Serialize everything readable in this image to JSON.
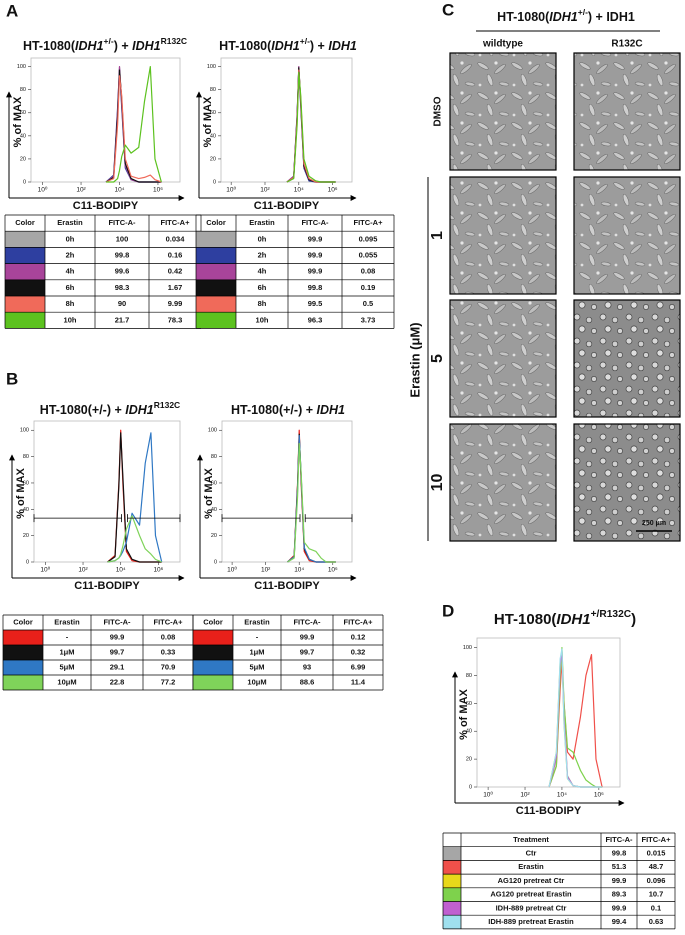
{
  "panel_labels": [
    "A",
    "B",
    "C",
    "D"
  ],
  "chart_data": [
    {
      "type": "line",
      "title_parts": [
        {
          "text": "HT-1080("
        },
        {
          "text": "IDH1",
          "style": "italic"
        },
        {
          "text": "+/-",
          "style": "sup"
        },
        {
          "text": ") + "
        },
        {
          "text": "IDH1",
          "style": "italic"
        },
        {
          "text": "R132C",
          "style": "sup"
        }
      ],
      "xlabel": "C11-BODIPY",
      "ylabel": "% of MAX",
      "log": "x",
      "xlim": [
        0.25,
        14000000
      ],
      "ylim": [
        0,
        104
      ],
      "xticks": [
        {
          "value": 1,
          "label": "10⁰"
        },
        {
          "value": 100,
          "label": "10²"
        },
        {
          "value": 10000,
          "label": "10⁴"
        },
        {
          "value": 1000000,
          "label": "10⁶"
        }
      ],
      "yticks": [
        0,
        20,
        40,
        60,
        80,
        100
      ],
      "x": [
        2000,
        5000,
        8000,
        10000,
        13000,
        20000,
        40000,
        100000,
        200000,
        400000,
        700000,
        1500000
      ],
      "series": [
        {
          "color": "#a6a6a6",
          "values": [
            0,
            5,
            60,
            100,
            70,
            15,
            2,
            0,
            0,
            0,
            0,
            0
          ]
        },
        {
          "color": "#2e3fa0",
          "values": [
            0,
            6,
            65,
            98,
            65,
            12,
            2,
            0,
            0,
            0,
            0,
            0
          ]
        },
        {
          "color": "#a8449a",
          "values": [
            0,
            5,
            62,
            100,
            68,
            14,
            2,
            0,
            0,
            0,
            0,
            0
          ]
        },
        {
          "color": "#111111",
          "values": [
            0,
            4,
            58,
            97,
            72,
            16,
            3,
            0,
            0,
            0,
            0,
            0
          ]
        },
        {
          "color": "#f06a5a",
          "values": [
            0,
            3,
            50,
            92,
            75,
            20,
            5,
            3,
            4,
            6,
            2,
            0
          ]
        },
        {
          "color": "#5cc21f",
          "values": [
            0,
            0,
            3,
            10,
            22,
            32,
            25,
            30,
            70,
            100,
            20,
            0
          ]
        }
      ]
    },
    {
      "type": "line",
      "title_parts": [
        {
          "text": "HT-1080("
        },
        {
          "text": "IDH1",
          "style": "italic"
        },
        {
          "text": "+/-",
          "style": "sup"
        },
        {
          "text": ") + "
        },
        {
          "text": "IDH1",
          "style": "italic"
        }
      ],
      "xlabel": "C11-BODIPY",
      "ylabel": "% of MAX",
      "log": "x",
      "xlim": [
        0.25,
        14000000
      ],
      "ylim": [
        0,
        104
      ],
      "xticks": [
        {
          "value": 1,
          "label": "10⁰"
        },
        {
          "value": 100,
          "label": "10²"
        },
        {
          "value": 10000,
          "label": "10⁴"
        },
        {
          "value": 1000000,
          "label": "10⁶"
        }
      ],
      "yticks": [
        0,
        20,
        40,
        60,
        80,
        100
      ],
      "x": [
        2000,
        5000,
        8000,
        10000,
        13000,
        20000,
        40000,
        100000,
        200000,
        400000,
        700000,
        1500000
      ],
      "series": [
        {
          "color": "#a6a6a6",
          "values": [
            0,
            4,
            55,
            100,
            70,
            14,
            2,
            0,
            0,
            0,
            0,
            0
          ]
        },
        {
          "color": "#2e3fa0",
          "values": [
            0,
            5,
            60,
            98,
            66,
            12,
            1,
            0,
            0,
            0,
            0,
            0
          ]
        },
        {
          "color": "#a8449a",
          "values": [
            0,
            5,
            58,
            100,
            68,
            13,
            2,
            0,
            0,
            0,
            0,
            0
          ]
        },
        {
          "color": "#111111",
          "values": [
            0,
            4,
            57,
            99,
            70,
            14,
            2,
            0,
            0,
            0,
            0,
            0
          ]
        },
        {
          "color": "#f06a5a",
          "values": [
            0,
            4,
            55,
            97,
            72,
            16,
            3,
            0,
            0,
            0,
            0,
            0
          ]
        },
        {
          "color": "#5cc21f",
          "values": [
            0,
            3,
            50,
            95,
            75,
            20,
            5,
            1,
            0,
            0,
            0,
            0
          ]
        }
      ]
    },
    {
      "type": "line",
      "title_parts": [
        {
          "text": "HT-1080(+/-) + "
        },
        {
          "text": "IDH1",
          "style": "italic"
        },
        {
          "text": "R132C",
          "style": "sup"
        }
      ],
      "xlabel": "C11-BODIPY",
      "ylabel": "% of MAX",
      "log": "x",
      "xlim": [
        0.25,
        14000000
      ],
      "ylim": [
        0,
        104
      ],
      "xticks": [
        {
          "value": 1,
          "label": "10⁰"
        },
        {
          "value": 100,
          "label": "10²"
        },
        {
          "value": 10000,
          "label": "10⁴"
        },
        {
          "value": 1000000,
          "label": "10⁶"
        }
      ],
      "yticks": [
        0,
        20,
        40,
        60,
        80,
        100
      ],
      "x": [
        2000,
        5000,
        8000,
        10000,
        13000,
        20000,
        40000,
        100000,
        200000,
        400000,
        700000,
        1500000
      ],
      "series": [
        {
          "color": "#e8201a",
          "values": [
            0,
            5,
            60,
            100,
            60,
            8,
            1,
            0,
            0,
            0,
            0,
            0
          ]
        },
        {
          "color": "#111111",
          "values": [
            0,
            4,
            58,
            98,
            65,
            10,
            2,
            0,
            0,
            0,
            0,
            0
          ]
        },
        {
          "color": "#2f78c4",
          "values": [
            0,
            1,
            3,
            5,
            8,
            15,
            37,
            28,
            75,
            98,
            20,
            0
          ]
        },
        {
          "color": "#7fd35a",
          "values": [
            0,
            1,
            3,
            6,
            12,
            25,
            35,
            20,
            10,
            6,
            2,
            0
          ]
        }
      ]
    },
    {
      "type": "line",
      "title_parts": [
        {
          "text": "HT-1080(+/-) + "
        },
        {
          "text": "IDH1",
          "style": "italic"
        }
      ],
      "xlabel": "C11-BODIPY",
      "ylabel": "% of MAX",
      "log": "x",
      "xlim": [
        0.25,
        14000000
      ],
      "ylim": [
        0,
        104
      ],
      "xticks": [
        {
          "value": 1,
          "label": "10⁰"
        },
        {
          "value": 100,
          "label": "10²"
        },
        {
          "value": 10000,
          "label": "10⁴"
        },
        {
          "value": 1000000,
          "label": "10⁶"
        }
      ],
      "yticks": [
        0,
        20,
        40,
        60,
        80,
        100
      ],
      "x": [
        2000,
        5000,
        8000,
        10000,
        13000,
        20000,
        40000,
        100000,
        200000,
        400000,
        700000,
        1500000
      ],
      "series": [
        {
          "color": "#e8201a",
          "values": [
            0,
            5,
            60,
            100,
            60,
            8,
            1,
            0,
            0,
            0,
            0,
            0
          ]
        },
        {
          "color": "#111111",
          "values": [
            0,
            4,
            58,
            97,
            65,
            10,
            2,
            0,
            0,
            0,
            0,
            0
          ]
        },
        {
          "color": "#2f78c4",
          "values": [
            0,
            4,
            55,
            96,
            66,
            11,
            2,
            0,
            0,
            0,
            0,
            0
          ]
        },
        {
          "color": "#7fd35a",
          "values": [
            0,
            3,
            50,
            90,
            68,
            15,
            10,
            8,
            3,
            0,
            0,
            0
          ]
        }
      ]
    },
    {
      "type": "line",
      "title_parts": [
        {
          "text": "HT-1080("
        },
        {
          "text": "IDH1",
          "style": "italic"
        },
        {
          "text": "+/R132C",
          "style": "sup"
        },
        {
          "text": ")"
        }
      ],
      "xlabel": "C11-BODIPY",
      "ylabel": "% of MAX",
      "log": "x",
      "xlim": [
        0.25,
        14000000
      ],
      "ylim": [
        0,
        104
      ],
      "xticks": [
        {
          "value": 1,
          "label": "10⁰"
        },
        {
          "value": 100,
          "label": "10²"
        },
        {
          "value": 10000,
          "label": "10⁴"
        },
        {
          "value": 1000000,
          "label": "10⁶"
        }
      ],
      "yticks": [
        0,
        20,
        40,
        60,
        80,
        100
      ],
      "x": [
        2000,
        5000,
        8000,
        10000,
        13000,
        20000,
        40000,
        100000,
        200000,
        400000,
        700000,
        1500000
      ],
      "series": [
        {
          "color": "#a6a6a6",
          "values": [
            0,
            20,
            85,
            98,
            50,
            8,
            1,
            0,
            0,
            0,
            0,
            0
          ]
        },
        {
          "color": "#f0504a",
          "values": [
            0,
            15,
            70,
            90,
            60,
            25,
            20,
            50,
            80,
            95,
            20,
            0
          ]
        },
        {
          "color": "#e8d81a",
          "values": [
            0,
            25,
            90,
            95,
            45,
            6,
            1,
            0,
            0,
            0,
            0,
            0
          ]
        },
        {
          "color": "#7ed24c",
          "values": [
            0,
            15,
            80,
            100,
            60,
            28,
            25,
            12,
            5,
            2,
            0,
            0
          ]
        },
        {
          "color": "#c060d0",
          "values": [
            0,
            22,
            88,
            97,
            48,
            7,
            1,
            0,
            0,
            0,
            0,
            0
          ]
        },
        {
          "color": "#9fe0ee",
          "values": [
            0,
            25,
            92,
            99,
            45,
            6,
            1,
            0,
            0,
            0,
            0,
            0
          ]
        }
      ]
    }
  ],
  "tables": [
    {
      "columns": [
        "Color",
        "Erastin",
        "FITC-A-",
        "FITC-A+"
      ],
      "rows": [
        {
          "color": "#a6a6a6",
          "cells": [
            "0h",
            100,
            0.034
          ]
        },
        {
          "color": "#2e3fa0",
          "cells": [
            "2h",
            99.8,
            0.16
          ]
        },
        {
          "color": "#a8449a",
          "cells": [
            "4h",
            99.6,
            0.42
          ]
        },
        {
          "color": "#111111",
          "cells": [
            "6h",
            98.3,
            1.67
          ]
        },
        {
          "color": "#f06a5a",
          "cells": [
            "8h",
            90,
            9.99
          ]
        },
        {
          "color": "#5cc21f",
          "cells": [
            "10h",
            21.7,
            78.3
          ]
        }
      ]
    },
    {
      "columns": [
        "Color",
        "Erastin",
        "FITC-A-",
        "FITC-A+"
      ],
      "rows": [
        {
          "color": "#a6a6a6",
          "cells": [
            "0h",
            99.9,
            0.095
          ]
        },
        {
          "color": "#2e3fa0",
          "cells": [
            "2h",
            99.9,
            0.055
          ]
        },
        {
          "color": "#a8449a",
          "cells": [
            "4h",
            99.9,
            0.08
          ]
        },
        {
          "color": "#111111",
          "cells": [
            "6h",
            99.8,
            0.19
          ]
        },
        {
          "color": "#f06a5a",
          "cells": [
            "8h",
            99.5,
            0.5
          ]
        },
        {
          "color": "#5cc21f",
          "cells": [
            "10h",
            96.3,
            3.73
          ]
        }
      ]
    },
    {
      "columns": [
        "Color",
        "Erastin",
        "FITC-A-",
        "FITC-A+"
      ],
      "rows": [
        {
          "color": "#e8201a",
          "cells": [
            "-",
            99.9,
            0.08
          ]
        },
        {
          "color": "#111111",
          "cells": [
            "1μM",
            99.7,
            0.33
          ]
        },
        {
          "color": "#2f78c4",
          "cells": [
            "5μM",
            29.1,
            70.9
          ]
        },
        {
          "color": "#7fd35a",
          "cells": [
            "10μM",
            22.8,
            77.2
          ]
        }
      ]
    },
    {
      "columns": [
        "Color",
        "Erastin",
        "FITC-A-",
        "FITC-A+"
      ],
      "rows": [
        {
          "color": "#e8201a",
          "cells": [
            "-",
            99.9,
            0.12
          ]
        },
        {
          "color": "#111111",
          "cells": [
            "1μM",
            99.7,
            0.32
          ]
        },
        {
          "color": "#2f78c4",
          "cells": [
            "5μM",
            93,
            6.99
          ]
        },
        {
          "color": "#7fd35a",
          "cells": [
            "10μM",
            88.6,
            11.4
          ]
        }
      ]
    },
    {
      "columns": [
        "Treatment",
        "FITC-A-",
        "FITC-A+"
      ],
      "rows": [
        {
          "color": "#a6a6a6",
          "cells": [
            "Ctr",
            99.8,
            0.015
          ]
        },
        {
          "color": "#f0504a",
          "cells": [
            "Erastin",
            51.3,
            48.7
          ]
        },
        {
          "color": "#e8d81a",
          "cells": [
            "AG120 pretreat Ctr",
            99.9,
            0.096
          ]
        },
        {
          "color": "#7ed24c",
          "cells": [
            "AG120 pretreat Erastin",
            89.3,
            10.7
          ]
        },
        {
          "color": "#c060d0",
          "cells": [
            "IDH-889 pretreat Ctr",
            99.9,
            0.1
          ]
        },
        {
          "color": "#9fe0ee",
          "cells": [
            "IDH-889 pretreat Erastin",
            99.4,
            0.63
          ]
        }
      ]
    }
  ],
  "panel_c": {
    "title_parts": [
      {
        "text": "HT-1080("
      },
      {
        "text": "IDH1",
        "style": "italic"
      },
      {
        "text": "+/-",
        "style": "sup"
      },
      {
        "text": ") + IDH1"
      }
    ],
    "columns": [
      "wildtype",
      "R132C"
    ],
    "rows": [
      "DMSO",
      "1",
      "5",
      "10"
    ],
    "axis_label": "Erastin (μM)",
    "scale_bar": "250 μm"
  }
}
